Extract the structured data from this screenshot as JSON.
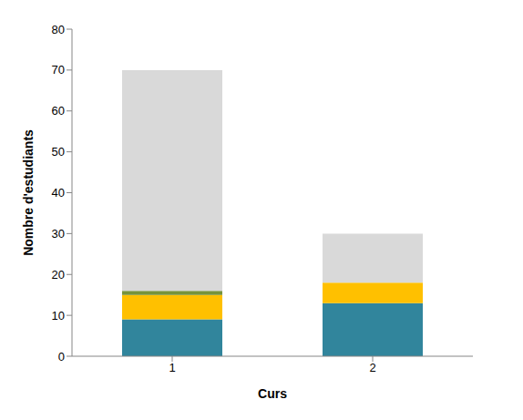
{
  "chart_data": {
    "type": "bar",
    "stacked": true,
    "x_label": "Curs",
    "y_label": "Nombre d'estudiants",
    "categories": [
      "1",
      "2"
    ],
    "series": [
      {
        "color": "#31859C",
        "values": [
          9,
          13
        ]
      },
      {
        "color": "#FFC000",
        "values": [
          6,
          5
        ]
      },
      {
        "color": "#77933C",
        "values": [
          1,
          0
        ]
      },
      {
        "color": "#D9D9D9",
        "values": [
          54,
          12
        ]
      }
    ],
    "ylim": [
      0,
      80
    ],
    "yticks": [
      0,
      10,
      20,
      30,
      40,
      50,
      60,
      70,
      80
    ],
    "grid": false
  }
}
